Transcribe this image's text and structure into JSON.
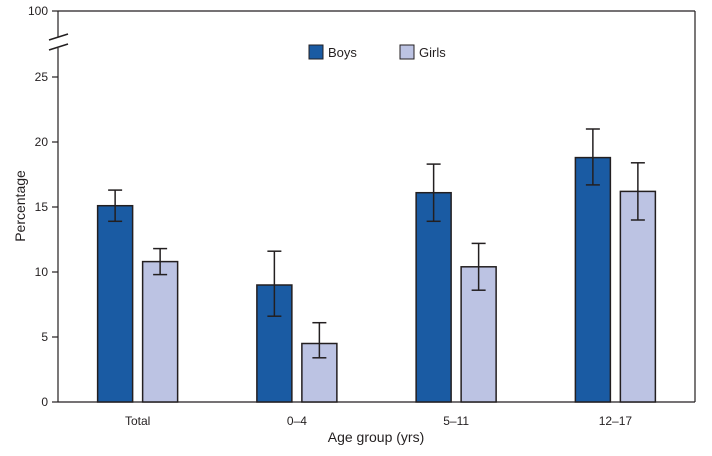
{
  "chart_data": {
    "type": "bar",
    "title": "",
    "xlabel": "Age group (yrs)",
    "ylabel": "Percentage",
    "categories": [
      "Total",
      "0–4",
      "5–11",
      "12–17"
    ],
    "series": [
      {
        "name": "Boys",
        "color": "#1a5ba3",
        "values": [
          15.1,
          9.0,
          16.1,
          18.8
        ],
        "error_low": [
          13.9,
          6.6,
          13.9,
          16.7
        ],
        "error_high": [
          16.3,
          11.6,
          18.3,
          21.0
        ]
      },
      {
        "name": "Girls",
        "color": "#bcc3e3",
        "values": [
          10.8,
          4.5,
          10.4,
          16.2
        ],
        "error_low": [
          9.8,
          3.4,
          8.6,
          14.0
        ],
        "error_high": [
          11.8,
          6.1,
          12.2,
          18.4
        ]
      }
    ],
    "ylim": [
      0,
      25
    ],
    "y_break_top": 100,
    "yticks": [
      "0",
      "5",
      "10",
      "15",
      "20",
      "25"
    ],
    "y_break_label": "100",
    "legend": "top-center",
    "grid": false
  }
}
